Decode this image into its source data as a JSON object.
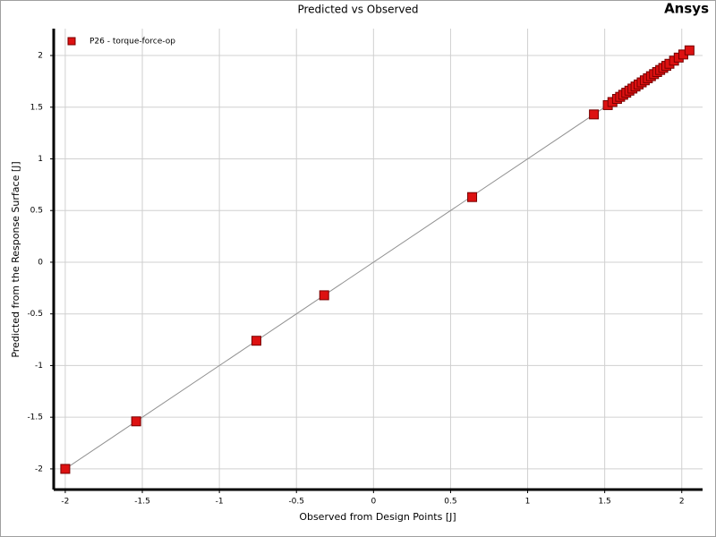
{
  "chart_data": {
    "type": "scatter",
    "title": "Predicted vs Observed",
    "logo": "Ansys",
    "x_label": "Observed from Design Points  [J]",
    "y_label": "Predicted from the Response Surface  [J]",
    "x": [
      -2,
      -1.54,
      -0.76,
      -0.32,
      0.64,
      1.43,
      1.52,
      1.55,
      1.58,
      1.6,
      1.62,
      1.64,
      1.66,
      1.68,
      1.7,
      1.72,
      1.74,
      1.76,
      1.78,
      1.8,
      1.82,
      1.84,
      1.86,
      1.88,
      1.9,
      1.92,
      1.95,
      1.98,
      2.01,
      2.05
    ],
    "series": [
      {
        "name": "P26 - torque-force-op",
        "color": "#dd1111",
        "values": [
          -2,
          -1.54,
          -0.76,
          -0.32,
          0.63,
          1.43,
          1.52,
          1.55,
          1.58,
          1.6,
          1.62,
          1.64,
          1.66,
          1.68,
          1.7,
          1.72,
          1.74,
          1.76,
          1.78,
          1.8,
          1.82,
          1.84,
          1.86,
          1.88,
          1.9,
          1.92,
          1.95,
          1.98,
          2.01,
          2.05
        ]
      }
    ],
    "xlim": [
      -2.075,
      2.135
    ],
    "ylim": [
      -2.2,
      2.26
    ],
    "xticks": [
      -2,
      -1.5,
      -1,
      -0.5,
      0,
      0.5,
      1,
      1.5,
      2
    ],
    "yticks": [
      -2,
      -1.5,
      -1,
      -0.5,
      0,
      0.5,
      1,
      1.5,
      2
    ],
    "grid": true,
    "legend": "top-left"
  }
}
